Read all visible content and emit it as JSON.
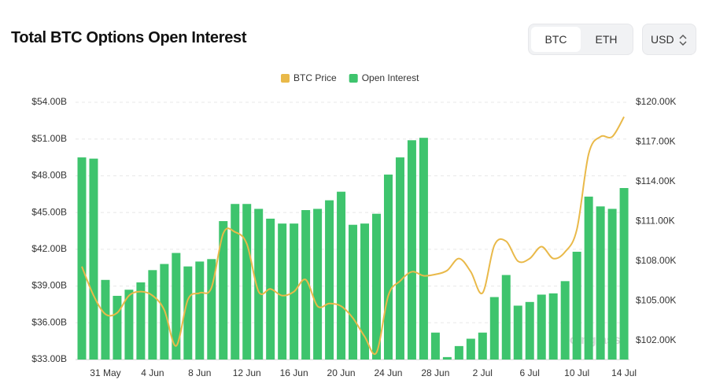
{
  "header": {
    "title": "Total BTC Options Open Interest",
    "coins": [
      "BTC",
      "ETH"
    ],
    "currency": "USD"
  },
  "chart_data": {
    "type": "bar-line",
    "categories": [
      null,
      null,
      "31 May",
      null,
      null,
      null,
      "4 Jun",
      null,
      null,
      null,
      "8 Jun",
      null,
      null,
      null,
      "12 Jun",
      null,
      null,
      null,
      "16 Jun",
      null,
      null,
      null,
      "20 Jun",
      null,
      null,
      null,
      "24 Jun",
      null,
      null,
      null,
      "28 Jun",
      null,
      null,
      null,
      "2 Jul",
      null,
      null,
      null,
      "6 Jul",
      null,
      null,
      null,
      "10 Jul",
      null,
      null,
      null,
      "14 Jul"
    ],
    "series": [
      {
        "name": "BTC Price",
        "type": "line",
        "axis": "y2",
        "color": "#e9b949",
        "values": [
          107.6,
          105.4,
          104.0,
          104.1,
          105.4,
          105.7,
          105.4,
          104.3,
          101.6,
          105.1,
          105.6,
          106.0,
          110.1,
          110.2,
          109.3,
          105.7,
          105.9,
          105.4,
          105.7,
          106.6,
          104.6,
          104.8,
          104.6,
          103.7,
          102.3,
          101.1,
          105.4,
          106.5,
          107.2,
          106.9,
          107.0,
          107.3,
          108.2,
          107.2,
          105.6,
          109.2,
          109.5,
          108.0,
          108.2,
          109.1,
          108.2,
          108.7,
          110.4,
          116.1,
          117.4,
          117.4,
          118.9
        ]
      },
      {
        "name": "Open Interest",
        "type": "bar",
        "color": "#3ec46d",
        "values": [
          49.5,
          49.4,
          39.5,
          38.2,
          38.7,
          39.3,
          40.3,
          40.8,
          41.7,
          40.6,
          41.0,
          41.2,
          44.3,
          45.7,
          45.7,
          45.3,
          44.5,
          44.1,
          44.1,
          45.2,
          45.3,
          46.0,
          46.7,
          44.0,
          44.1,
          44.9,
          48.1,
          49.5,
          50.9,
          51.1,
          35.2,
          33.2,
          34.1,
          34.7,
          35.2,
          38.1,
          39.9,
          37.4,
          37.7,
          38.3,
          38.4,
          39.4,
          41.8,
          46.3,
          45.5,
          45.3,
          47.0
        ]
      }
    ],
    "ylim": [
      33,
      54
    ],
    "yticks": [
      {
        "value": 33,
        "label": "$33.00B"
      },
      {
        "value": 36,
        "label": "$36.00B"
      },
      {
        "value": 39,
        "label": "$39.00B"
      },
      {
        "value": 42,
        "label": "$42.00B"
      },
      {
        "value": 45,
        "label": "$45.00B"
      },
      {
        "value": 48,
        "label": "$48.00B"
      },
      {
        "value": 51,
        "label": "$51.00B"
      },
      {
        "value": 54,
        "label": "$54.00B"
      }
    ],
    "y2lim": [
      100.57,
      120
    ],
    "y2ticks": [
      {
        "value": 102,
        "label": "$102.00K"
      },
      {
        "value": 105,
        "label": "$105.00K"
      },
      {
        "value": 108,
        "label": "$108.00K"
      },
      {
        "value": 111,
        "label": "$111.00K"
      },
      {
        "value": 114,
        "label": "$114.00K"
      },
      {
        "value": 117,
        "label": "$117.00K"
      },
      {
        "value": 120,
        "label": "$120.00K"
      }
    ],
    "grid": true,
    "legend": "top",
    "watermark": "coinglass"
  }
}
